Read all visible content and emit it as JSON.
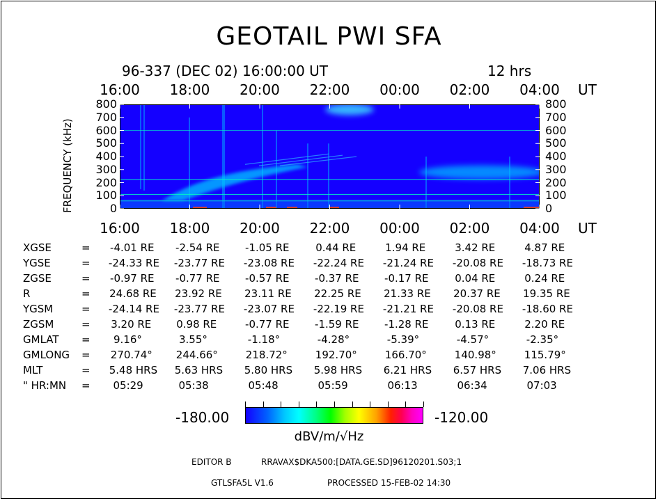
{
  "title": "GEOTAIL PWI SFA",
  "subtitle_date": "96-337 (DEC 02) 16:00:00 UT",
  "subtitle_span": "12 hrs",
  "time_unit": "UT",
  "ylabel": "FREQUENCY (kHz)",
  "chart_data": {
    "type": "heatmap",
    "title": "GEOTAIL PWI SFA",
    "xlabel": "UT",
    "ylabel": "FREQUENCY (kHz)",
    "x_ticks": [
      "16:00",
      "18:00",
      "20:00",
      "22:00",
      "00:00",
      "02:00",
      "04:00"
    ],
    "y_ticks": [
      "0",
      "100",
      "200",
      "300",
      "400",
      "500",
      "600",
      "700",
      "800"
    ],
    "ylim": [
      0,
      800
    ],
    "colorbar": {
      "min": "-180.00",
      "max": "-120.00",
      "unit": "dBV/m/√Hz"
    }
  },
  "orbit": {
    "rows": [
      {
        "label": "XGSE",
        "eq": "=",
        "values": [
          "-4.01 RE",
          "-2.54 RE",
          "-1.05 RE",
          "0.44 RE",
          "1.94 RE",
          "3.42 RE",
          "4.87 RE"
        ]
      },
      {
        "label": "YGSE",
        "eq": "=",
        "values": [
          "-24.33 RE",
          "-23.77 RE",
          "-23.08 RE",
          "-22.24 RE",
          "-21.24 RE",
          "-20.08 RE",
          "-18.73 RE"
        ]
      },
      {
        "label": "ZGSE",
        "eq": "=",
        "values": [
          "-0.97 RE",
          "-0.77 RE",
          "-0.57 RE",
          "-0.37 RE",
          "-0.17 RE",
          "0.04 RE",
          "0.24 RE"
        ]
      },
      {
        "label": "R",
        "eq": "=",
        "values": [
          "24.68 RE",
          "23.92 RE",
          "23.11 RE",
          "22.25 RE",
          "21.33 RE",
          "20.37 RE",
          "19.35 RE"
        ]
      },
      {
        "label": "YGSM",
        "eq": "=",
        "values": [
          "-24.14 RE",
          "-23.77 RE",
          "-23.07 RE",
          "-22.19 RE",
          "-21.21 RE",
          "-20.08 RE",
          "-18.60 RE"
        ]
      },
      {
        "label": "ZGSM",
        "eq": "=",
        "values": [
          "3.20 RE",
          "0.98 RE",
          "-0.77 RE",
          "-1.59 RE",
          "-1.28 RE",
          "0.13 RE",
          "2.20 RE"
        ]
      },
      {
        "label": "GMLAT",
        "eq": "=",
        "values": [
          "9.16°",
          "3.55°",
          "-1.18°",
          "-4.28°",
          "-5.39°",
          "-4.57°",
          "-2.35°"
        ]
      },
      {
        "label": "GMLONG",
        "eq": "=",
        "values": [
          "270.74°",
          "244.66°",
          "218.72°",
          "192.70°",
          "166.70°",
          "140.98°",
          "115.79°"
        ]
      },
      {
        "label": "MLT",
        "eq": "=",
        "values": [
          "5.48 HRS",
          "5.63 HRS",
          "5.80 HRS",
          "5.98 HRS",
          "6.21 HRS",
          "6.57 HRS",
          "7.06 HRS"
        ]
      },
      {
        "label": "\" HR:MN",
        "eq": "=",
        "values": [
          "05:29",
          "05:38",
          "05:48",
          "05:59",
          "06:13",
          "06:34",
          "07:03"
        ]
      }
    ]
  },
  "footer": {
    "editor": "EDITOR B",
    "path": "RRAVAX$DKA500:[DATA.GE.SD]96120201.S03;1",
    "version": "GTLSFA5L V1.6",
    "processed": "PROCESSED 15-FEB-02 14:30"
  },
  "colors": {
    "background": "#1400ff",
    "band": "#00c8ff",
    "hot": "#ff0000"
  }
}
